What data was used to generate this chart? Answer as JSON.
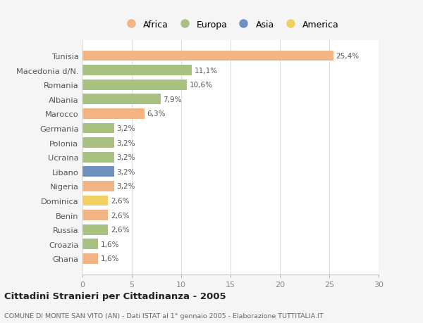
{
  "countries": [
    "Tunisia",
    "Macedonia d/N.",
    "Romania",
    "Albania",
    "Marocco",
    "Germania",
    "Polonia",
    "Ucraina",
    "Libano",
    "Nigeria",
    "Dominica",
    "Benin",
    "Russia",
    "Croazia",
    "Ghana"
  ],
  "values": [
    25.4,
    11.1,
    10.6,
    7.9,
    6.3,
    3.2,
    3.2,
    3.2,
    3.2,
    3.2,
    2.6,
    2.6,
    2.6,
    1.6,
    1.6
  ],
  "labels": [
    "25,4%",
    "11,1%",
    "10,6%",
    "7,9%",
    "6,3%",
    "3,2%",
    "3,2%",
    "3,2%",
    "3,2%",
    "3,2%",
    "2,6%",
    "2,6%",
    "2,6%",
    "1,6%",
    "1,6%"
  ],
  "colors": [
    "#f2b482",
    "#a8c080",
    "#a8c080",
    "#a8c080",
    "#f2b482",
    "#a8c080",
    "#a8c080",
    "#a8c080",
    "#7090c0",
    "#f2b482",
    "#f0d060",
    "#f2b482",
    "#a8c080",
    "#a8c080",
    "#f2b482"
  ],
  "legend_labels": [
    "Africa",
    "Europa",
    "Asia",
    "America"
  ],
  "legend_colors": [
    "#f2b482",
    "#a8c080",
    "#7090c0",
    "#f0d060"
  ],
  "title": "Cittadini Stranieri per Cittadinanza - 2005",
  "subtitle": "COMUNE DI MONTE SAN VITO (AN) - Dati ISTAT al 1° gennaio 2005 - Elaborazione TUTTITALIA.IT",
  "xlim": [
    0,
    30
  ],
  "xticks": [
    0,
    5,
    10,
    15,
    20,
    25,
    30
  ],
  "background_color": "#f5f5f5",
  "bar_background": "#ffffff"
}
